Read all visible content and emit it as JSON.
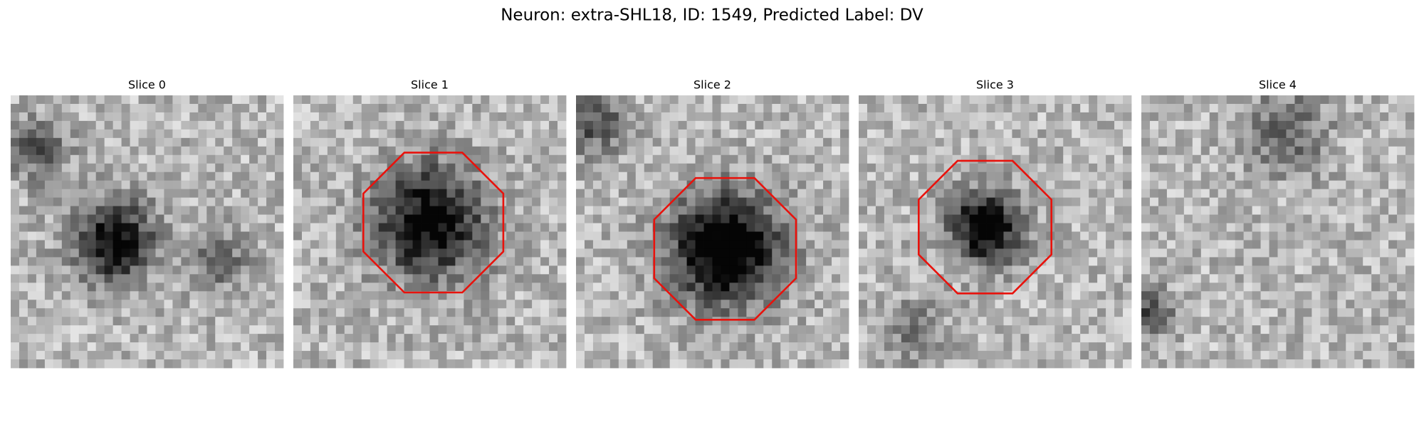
{
  "title": "Neuron: extra-SHL18, ID: 1549, Predicted Label: DV",
  "panels": [
    {
      "title": "Slice 0"
    },
    {
      "title": "Slice 1"
    },
    {
      "title": "Slice 2"
    },
    {
      "title": "Slice 3"
    },
    {
      "title": "Slice 4"
    }
  ]
}
